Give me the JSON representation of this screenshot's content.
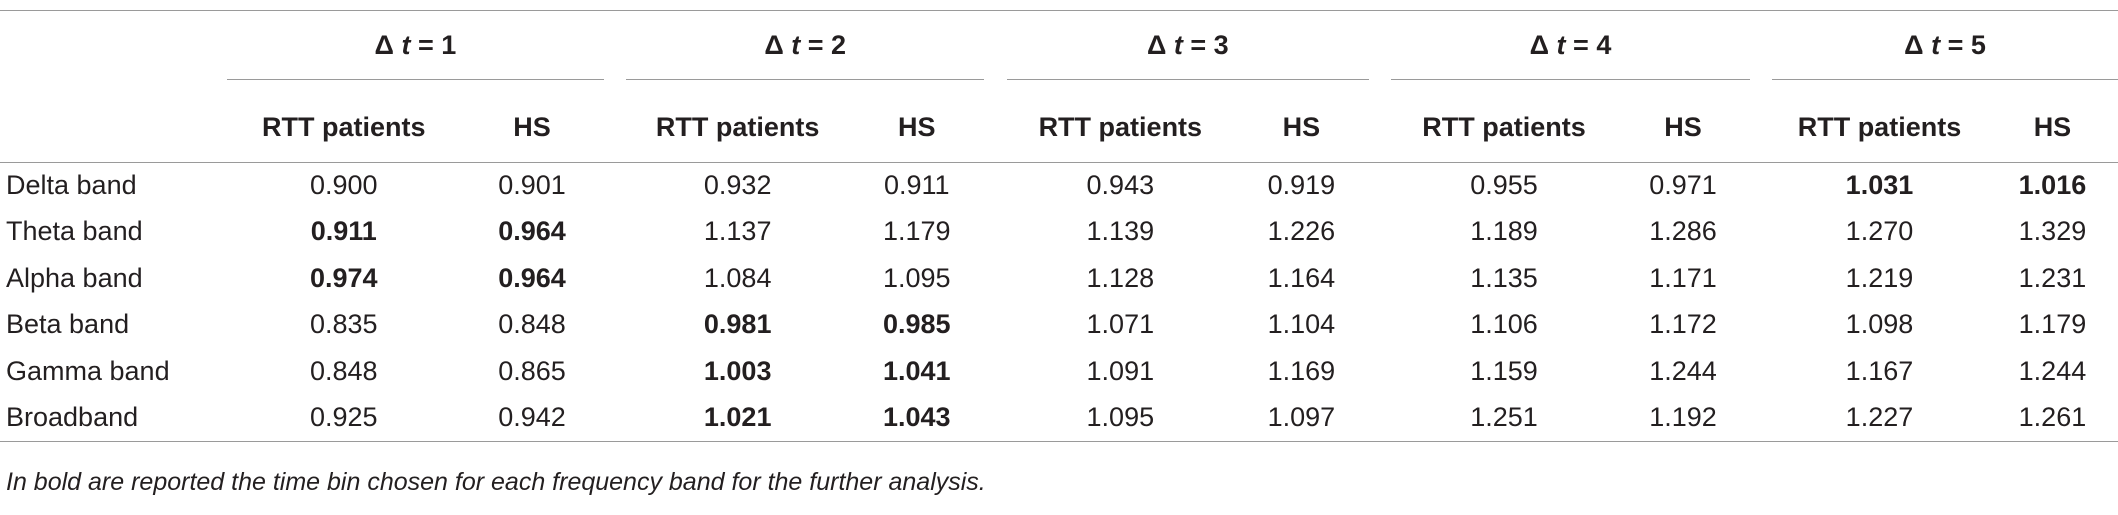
{
  "table": {
    "groups": [
      {
        "prefix": "Δ ",
        "var": "t",
        "suffix": " = 1"
      },
      {
        "prefix": "Δ ",
        "var": "t",
        "suffix": " = 2"
      },
      {
        "prefix": "Δ ",
        "var": "t",
        "suffix": " = 3"
      },
      {
        "prefix": "Δ ",
        "var": "t",
        "suffix": " = 4"
      },
      {
        "prefix": "Δ ",
        "var": "t",
        "suffix": " = 5"
      }
    ],
    "subheaders": [
      "RTT patients",
      "HS"
    ],
    "rows": [
      {
        "label": "Delta band",
        "values": [
          "0.900",
          "0.901",
          "0.932",
          "0.911",
          "0.943",
          "0.919",
          "0.955",
          "0.971",
          "1.031",
          "1.016"
        ],
        "bold": [
          false,
          false,
          false,
          false,
          false,
          false,
          false,
          false,
          true,
          true
        ]
      },
      {
        "label": "Theta band",
        "values": [
          "0.911",
          "0.964",
          "1.137",
          "1.179",
          "1.139",
          "1.226",
          "1.189",
          "1.286",
          "1.270",
          "1.329"
        ],
        "bold": [
          true,
          true,
          false,
          false,
          false,
          false,
          false,
          false,
          false,
          false
        ]
      },
      {
        "label": "Alpha band",
        "values": [
          "0.974",
          "0.964",
          "1.084",
          "1.095",
          "1.128",
          "1.164",
          "1.135",
          "1.171",
          "1.219",
          "1.231"
        ],
        "bold": [
          true,
          true,
          false,
          false,
          false,
          false,
          false,
          false,
          false,
          false
        ]
      },
      {
        "label": "Beta band",
        "values": [
          "0.835",
          "0.848",
          "0.981",
          "0.985",
          "1.071",
          "1.104",
          "1.106",
          "1.172",
          "1.098",
          "1.179"
        ],
        "bold": [
          false,
          false,
          true,
          true,
          false,
          false,
          false,
          false,
          false,
          false
        ]
      },
      {
        "label": "Gamma band",
        "values": [
          "0.848",
          "0.865",
          "1.003",
          "1.041",
          "1.091",
          "1.169",
          "1.159",
          "1.244",
          "1.167",
          "1.244"
        ],
        "bold": [
          false,
          false,
          true,
          true,
          false,
          false,
          false,
          false,
          false,
          false
        ]
      },
      {
        "label": "Broadband",
        "values": [
          "0.925",
          "0.942",
          "1.021",
          "1.043",
          "1.095",
          "1.097",
          "1.251",
          "1.192",
          "1.227",
          "1.261"
        ],
        "bold": [
          false,
          false,
          true,
          true,
          false,
          false,
          false,
          false,
          false,
          false
        ]
      }
    ],
    "footnote": "In bold are reported the time bin chosen for each frequency band for the further analysis."
  }
}
